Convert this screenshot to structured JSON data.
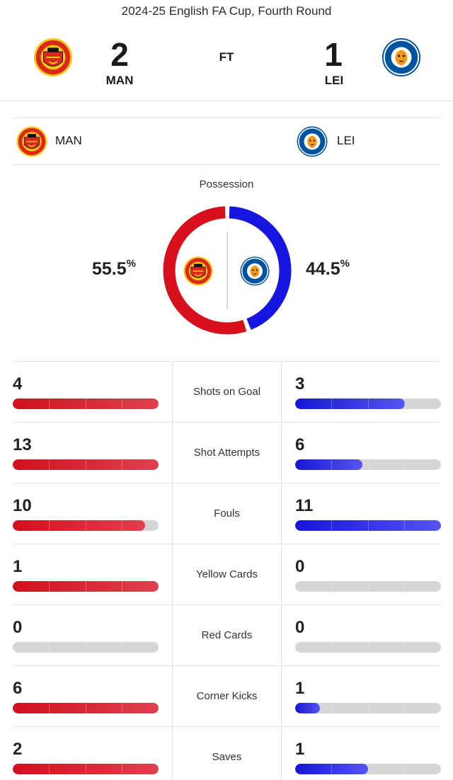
{
  "competition": "2024-25 English FA Cup, Fourth Round",
  "status": "FT",
  "home": {
    "abbr": "MAN",
    "score": "2",
    "color": "#DA291C",
    "logo": "manchester-united-crest"
  },
  "away": {
    "abbr": "LEI",
    "score": "1",
    "color": "#0053A0",
    "logo": "leicester-city-crest"
  },
  "possession": {
    "title": "Possession",
    "home_pct": 55.5,
    "away_pct": 44.5,
    "home_text": "55.5",
    "away_text": "44.5",
    "unit": "%"
  },
  "stats": [
    {
      "label": "Shots on Goal",
      "home": "4",
      "away": "3",
      "home_frac": 1.0,
      "away_frac": 0.75
    },
    {
      "label": "Shot Attempts",
      "home": "13",
      "away": "6",
      "home_frac": 1.0,
      "away_frac": 0.46
    },
    {
      "label": "Fouls",
      "home": "10",
      "away": "11",
      "home_frac": 0.91,
      "away_frac": 1.0
    },
    {
      "label": "Yellow Cards",
      "home": "1",
      "away": "0",
      "home_frac": 1.0,
      "away_frac": 0.0
    },
    {
      "label": "Red Cards",
      "home": "0",
      "away": "0",
      "home_frac": 0.0,
      "away_frac": 0.0
    },
    {
      "label": "Corner Kicks",
      "home": "6",
      "away": "1",
      "home_frac": 1.0,
      "away_frac": 0.17
    },
    {
      "label": "Saves",
      "home": "2",
      "away": "1",
      "home_frac": 1.0,
      "away_frac": 0.5
    }
  ]
}
